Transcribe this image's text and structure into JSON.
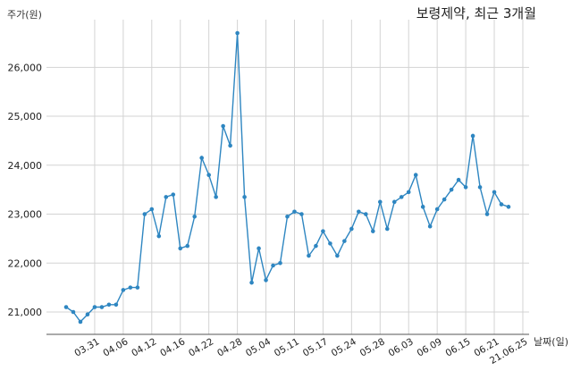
{
  "chart_data": {
    "type": "line",
    "title": "보령제약, 최근 3개월",
    "ylabel": "주가(원)",
    "xlabel": "날짜(일)",
    "ylim": [
      20500,
      27000
    ],
    "yticks": [
      21000,
      22000,
      23000,
      24000,
      25000,
      26000
    ],
    "ytick_labels": [
      "21,000",
      "22,000",
      "23,000",
      "24,000",
      "25,000",
      "26,000"
    ],
    "grid": true,
    "line_color": "#2e86c1",
    "xtick_labels": [
      "03.31",
      "04.06",
      "04.12",
      "04.16",
      "04.22",
      "04.28",
      "05.04",
      "05.11",
      "05.17",
      "05.24",
      "05.28",
      "06.03",
      "06.09",
      "06.15",
      "06.21",
      "21.06.25"
    ],
    "xtick_index": [
      4,
      8,
      12,
      16,
      20,
      24,
      28,
      32,
      36,
      40,
      44,
      48,
      52,
      56,
      60,
      64
    ],
    "series": [
      {
        "values": [
          21100,
          21000,
          20800,
          20950,
          21100,
          21100,
          21150,
          21150,
          21450,
          21500,
          21500,
          23000,
          23100,
          22550,
          23350,
          23400,
          22300,
          22350,
          22950,
          24150,
          23800,
          23350,
          24800,
          24400,
          26700,
          23350,
          21600,
          22300,
          21650,
          21950,
          22000,
          22950,
          23050,
          23000,
          22150,
          22350,
          22650,
          22400,
          22150,
          22450,
          22700,
          23050,
          23000,
          22650,
          23250,
          22700,
          23250,
          23350,
          23450,
          23800,
          23150,
          22750,
          23100,
          23300,
          23500,
          23700,
          23550,
          24600,
          23550,
          23000,
          23450,
          23200,
          23150
        ]
      }
    ]
  }
}
